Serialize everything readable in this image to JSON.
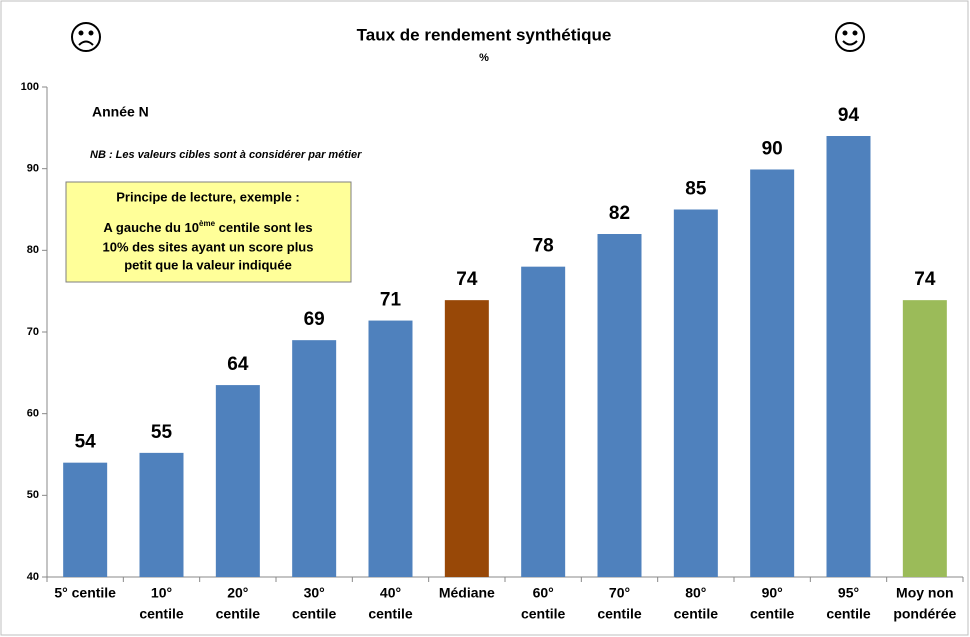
{
  "chart_data": {
    "type": "bar",
    "title": "Taux de rendement synthétique",
    "subtitle": "%",
    "categories": [
      [
        "5° centile"
      ],
      [
        "10°",
        "centile"
      ],
      [
        "20°",
        "centile"
      ],
      [
        "30°",
        "centile"
      ],
      [
        "40°",
        "centile"
      ],
      [
        "Médiane"
      ],
      [
        "60°",
        "centile"
      ],
      [
        "70°",
        "centile"
      ],
      [
        "80°",
        "centile"
      ],
      [
        "90°",
        "centile"
      ],
      [
        "95°",
        "centile"
      ],
      [
        "Moy non",
        "pondérée"
      ]
    ],
    "values": [
      54,
      55.2,
      63.5,
      69,
      71.4,
      73.9,
      78,
      82,
      85,
      89.9,
      94,
      73.9
    ],
    "value_labels": [
      "54",
      "55",
      "64",
      "69",
      "71",
      "74",
      "78",
      "82",
      "85",
      "90",
      "94",
      "74"
    ],
    "colors": [
      "#4f81bd",
      "#4f81bd",
      "#4f81bd",
      "#4f81bd",
      "#4f81bd",
      "#984807",
      "#4f81bd",
      "#4f81bd",
      "#4f81bd",
      "#4f81bd",
      "#4f81bd",
      "#9bbb59"
    ],
    "ylim": [
      40,
      100
    ],
    "yticks": [
      40,
      50,
      60,
      70,
      80,
      90,
      100
    ],
    "grid": false,
    "annotations": {
      "year": "Année N",
      "note": "NB : Les valeurs cibles sont à considérer par métier",
      "box_title": "Principe de lecture, exemple :",
      "box_line1": [
        "A gauche du 10",
        "ème",
        " centile sont les"
      ],
      "box_line2": "10% des sites ayant un score plus",
      "box_line3": "petit que la valeur indiquée"
    }
  }
}
